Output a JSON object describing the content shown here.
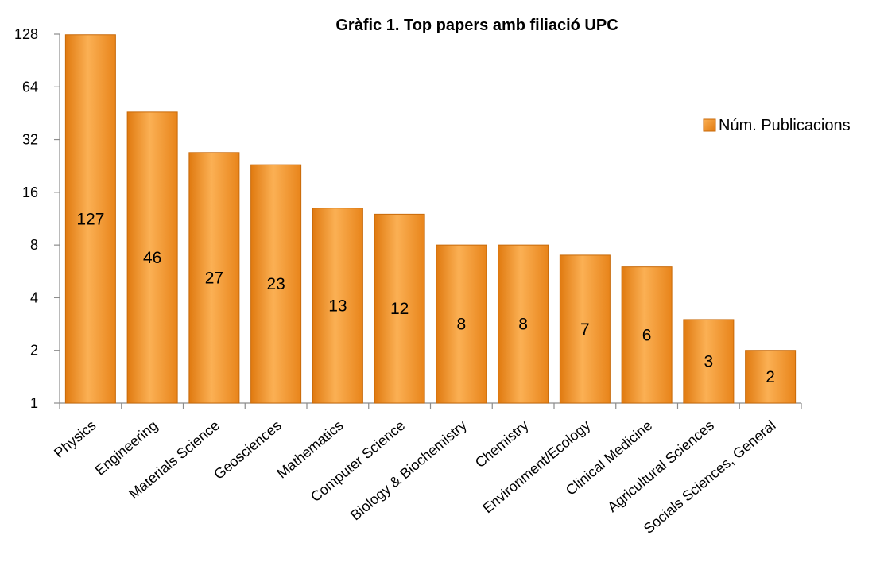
{
  "chart_data": {
    "type": "bar",
    "title": "Gràfic 1. Top papers amb filiació UPC",
    "xlabel": "",
    "ylabel": "",
    "yscale": "log2",
    "ylim": [
      1,
      128
    ],
    "yticks": [
      1,
      2,
      4,
      8,
      16,
      32,
      64,
      128
    ],
    "grid": false,
    "legend_position": "right",
    "categories": [
      "Physics",
      "Engineering",
      "Materials Science",
      "Geosciences",
      "Mathematics",
      "Computer Science",
      "Biology & Biochemistry",
      "Chemistry",
      "Environment/Ecology",
      "Clinical Medicine",
      "Agricultural Sciences",
      "Socials Sciences, General"
    ],
    "series": [
      {
        "name": "Núm. Publicacions",
        "color": "#F39A2E",
        "values": [
          127,
          46,
          27,
          23,
          13,
          12,
          8,
          8,
          7,
          6,
          3,
          2
        ]
      }
    ]
  }
}
